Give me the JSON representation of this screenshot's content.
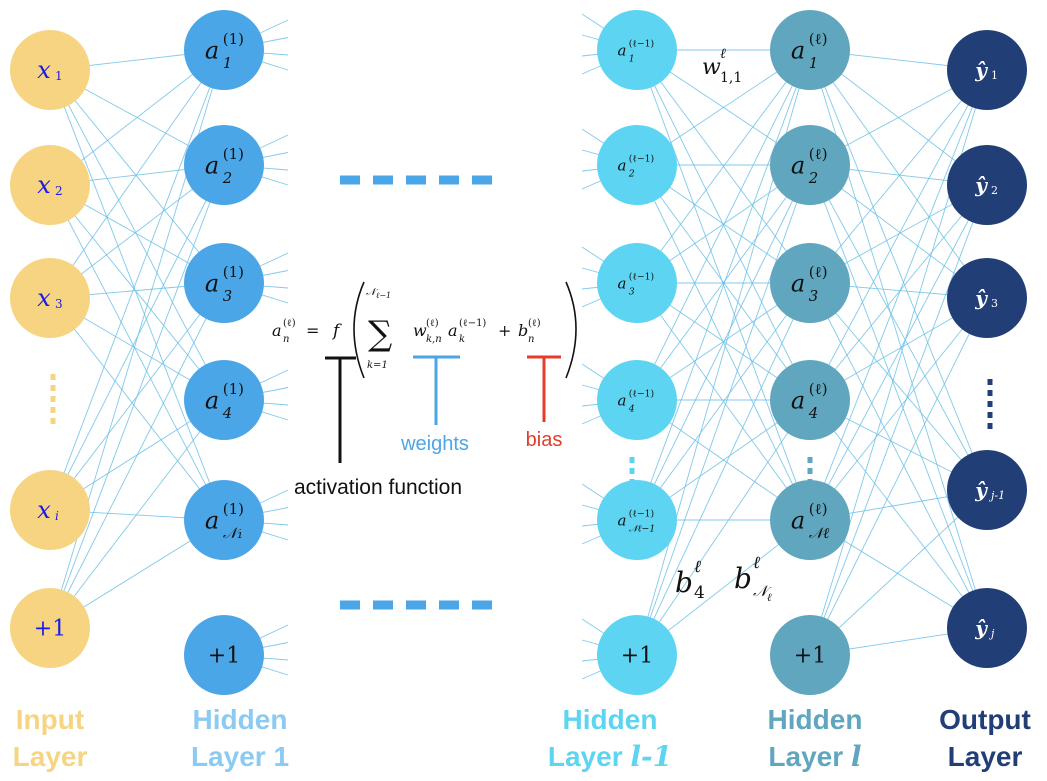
{
  "colors": {
    "input": "#f6d482",
    "input_text": "#1a1ae6",
    "hidden1": "#4ba6e8",
    "hidden_prev": "#5dd5f2",
    "hidden_l": "#5fa6be",
    "output": "#213f76",
    "edge": "#6bbfe8",
    "weights": "#4ba6e8",
    "bias": "#e53b2b",
    "activation": "#111111"
  },
  "input_layer": {
    "nodes": [
      "x1",
      "x2",
      "x3",
      "xi",
      "+1"
    ],
    "label_line1": "Input",
    "label_line2": "Layer"
  },
  "hidden_layer_1": {
    "nodes": [
      "a1(1)",
      "a2(1)",
      "a3(1)",
      "a4(1)",
      "aN1(1)",
      "+1"
    ],
    "label_line1": "Hidden",
    "label_line2": "Layer 1"
  },
  "hidden_layer_prev": {
    "nodes": [
      "a1(ℓ−1)",
      "a2(ℓ−1)",
      "a3(ℓ−1)",
      "a4(ℓ−1)",
      "aNℓ−1(ℓ−1)",
      "+1"
    ],
    "label_line1": "Hidden",
    "label_line2_prefix": "Layer ",
    "label_line2_italic": "l-1"
  },
  "hidden_layer_l": {
    "nodes": [
      "a1(ℓ)",
      "a2(ℓ)",
      "a3(ℓ)",
      "a4(ℓ)",
      "aNℓ(ℓ)",
      "+1"
    ],
    "label_line1": "Hidden",
    "label_line2_prefix": "Layer ",
    "label_line2_italic": "l"
  },
  "output_layer": {
    "nodes": [
      "ŷ1",
      "ŷ2",
      "ŷ3",
      "ŷj-1",
      "ŷj"
    ],
    "label_line1": "Output",
    "label_line2": "Layer"
  },
  "equation": {
    "lhs": "a_n^(ℓ) = f",
    "sum": "Σ_{k=1}^{Nℓ−1}",
    "weight_term": "w_{k,n}^(ℓ) a_k^(ℓ−1)",
    "bias_term": "+ b_n^(ℓ)",
    "weights_label": "weights",
    "bias_label": "bias",
    "activation_label": "activation function"
  },
  "edge_labels": {
    "weight": "w_{1,1}^ℓ",
    "bias4": "b_4^ℓ",
    "biasN": "b_{Nℓ}^ℓ"
  }
}
